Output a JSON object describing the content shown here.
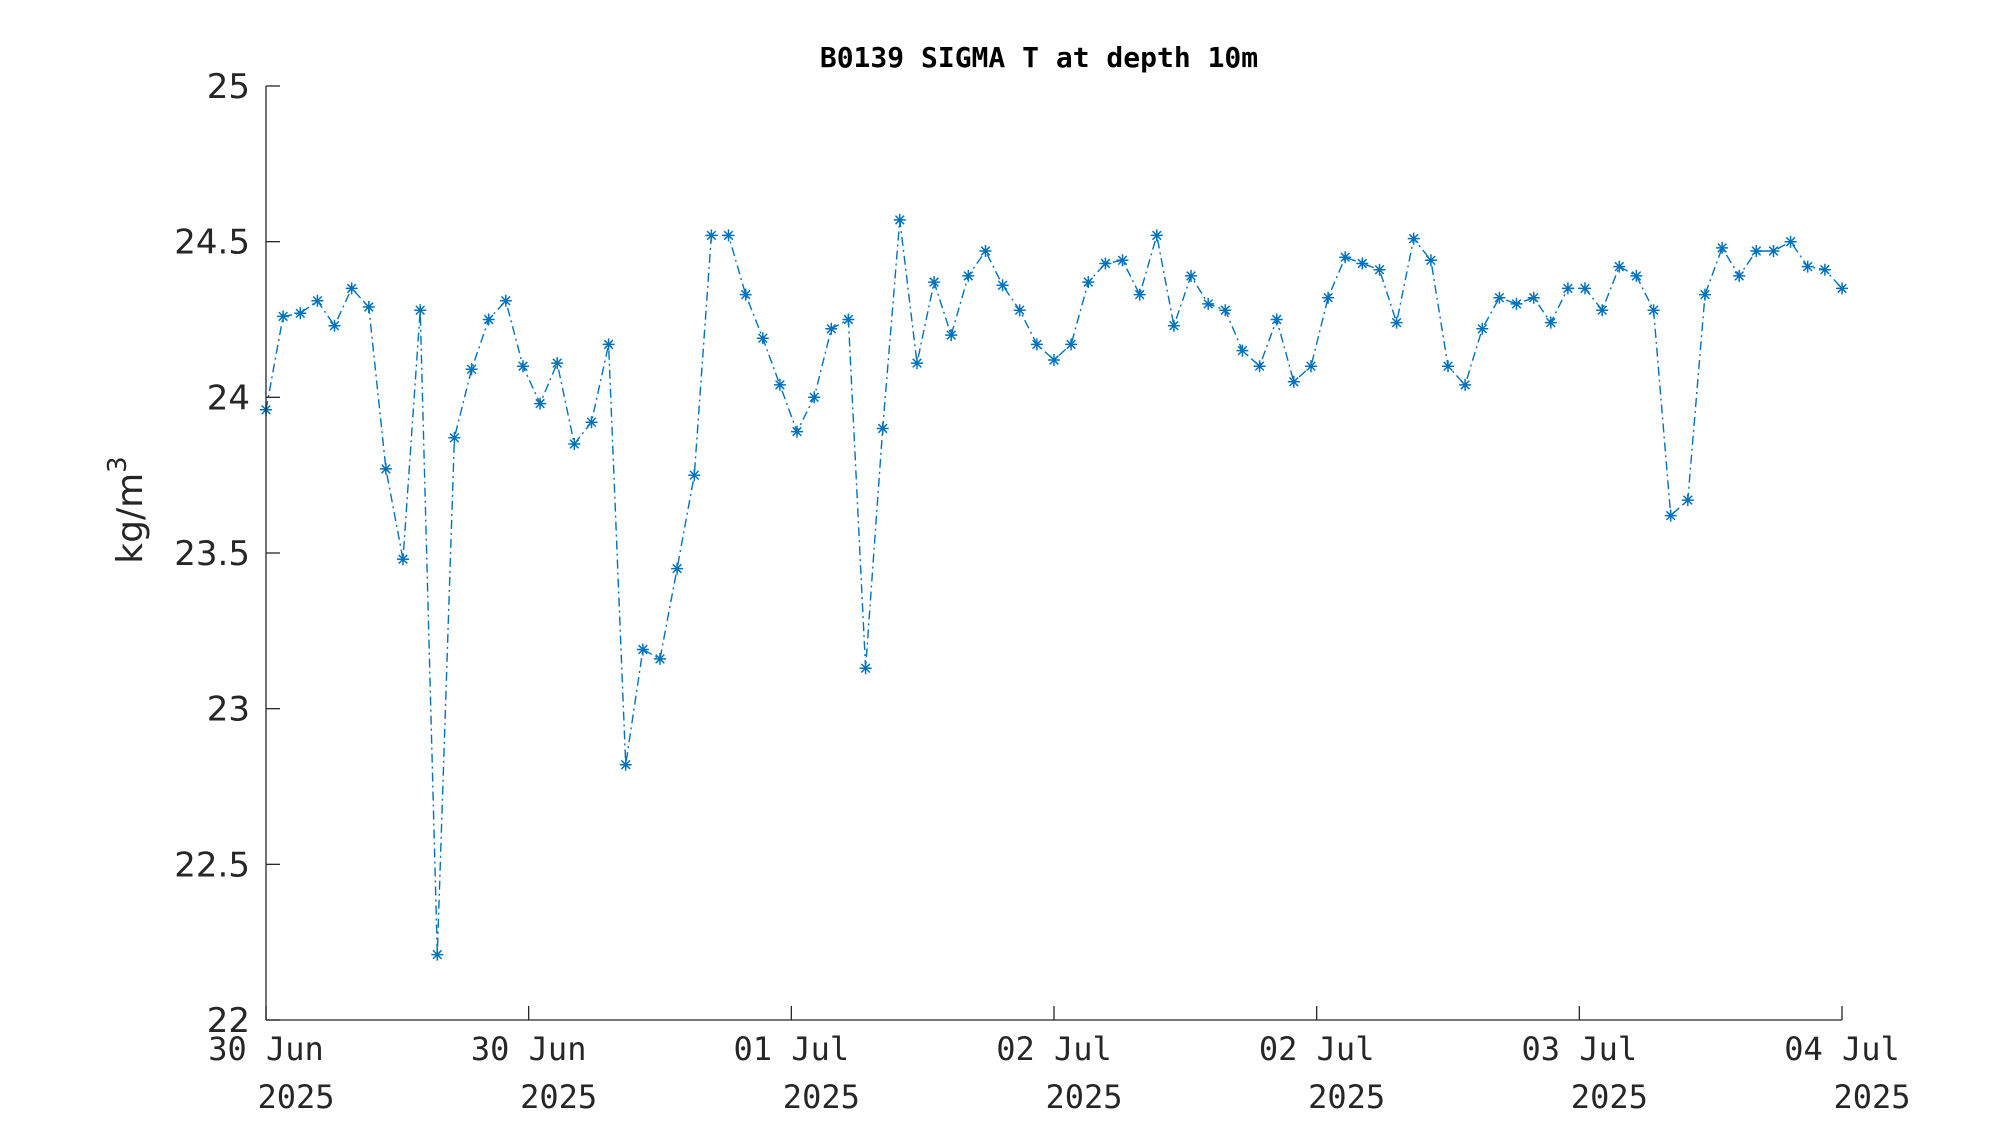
{
  "chart_data": {
    "type": "line",
    "title": "B0139 SIGMA T at depth 10m",
    "ylabel": "kg/m",
    "ylabel_superscript": "3",
    "ylim": [
      22,
      25
    ],
    "yticks": [
      "22",
      "22.5",
      "23",
      "23.5",
      "24",
      "24.5",
      "25"
    ],
    "xticks": [
      {
        "date": "30 Jun",
        "year": "2025"
      },
      {
        "date": "30 Jun",
        "year": "2025"
      },
      {
        "date": "01 Jul",
        "year": "2025"
      },
      {
        "date": "02 Jul",
        "year": "2025"
      },
      {
        "date": "02 Jul",
        "year": "2025"
      },
      {
        "date": "03 Jul",
        "year": "2025"
      },
      {
        "date": "04 Jul",
        "year": "2025"
      }
    ],
    "line_style": "dash-dot",
    "marker": "asterisk",
    "series_color": "#0072BD",
    "series": [
      {
        "values": [
          23.96,
          24.26,
          24.27,
          24.31,
          24.23,
          24.35,
          24.29,
          23.77,
          23.48,
          24.28,
          22.21,
          23.87,
          24.09,
          24.25,
          24.31,
          24.1,
          23.98,
          24.11,
          23.85,
          23.92,
          24.17,
          22.82,
          23.19,
          23.16,
          23.45,
          23.75,
          24.52,
          24.52,
          24.33,
          24.19,
          24.04,
          23.89,
          24.0,
          24.22,
          24.25,
          23.13,
          23.9,
          24.57,
          24.11,
          24.37,
          24.2,
          24.39,
          24.47,
          24.36,
          24.28,
          24.17,
          24.12,
          24.17,
          24.37,
          24.43,
          24.44,
          24.33,
          24.52,
          24.23,
          24.39,
          24.3,
          24.28,
          24.15,
          24.1,
          24.25,
          24.05,
          24.1,
          24.32,
          24.45,
          24.43,
          24.41,
          24.24,
          24.51,
          24.44,
          24.1,
          24.04,
          24.22,
          24.32,
          24.3,
          24.32,
          24.24,
          24.35,
          24.35,
          24.28,
          24.42,
          24.39,
          24.28,
          23.62,
          23.67,
          24.33,
          24.48,
          24.39,
          24.47,
          24.47,
          24.5,
          24.42,
          24.41,
          24.35
        ]
      }
    ],
    "grid": false,
    "legend": "none"
  }
}
